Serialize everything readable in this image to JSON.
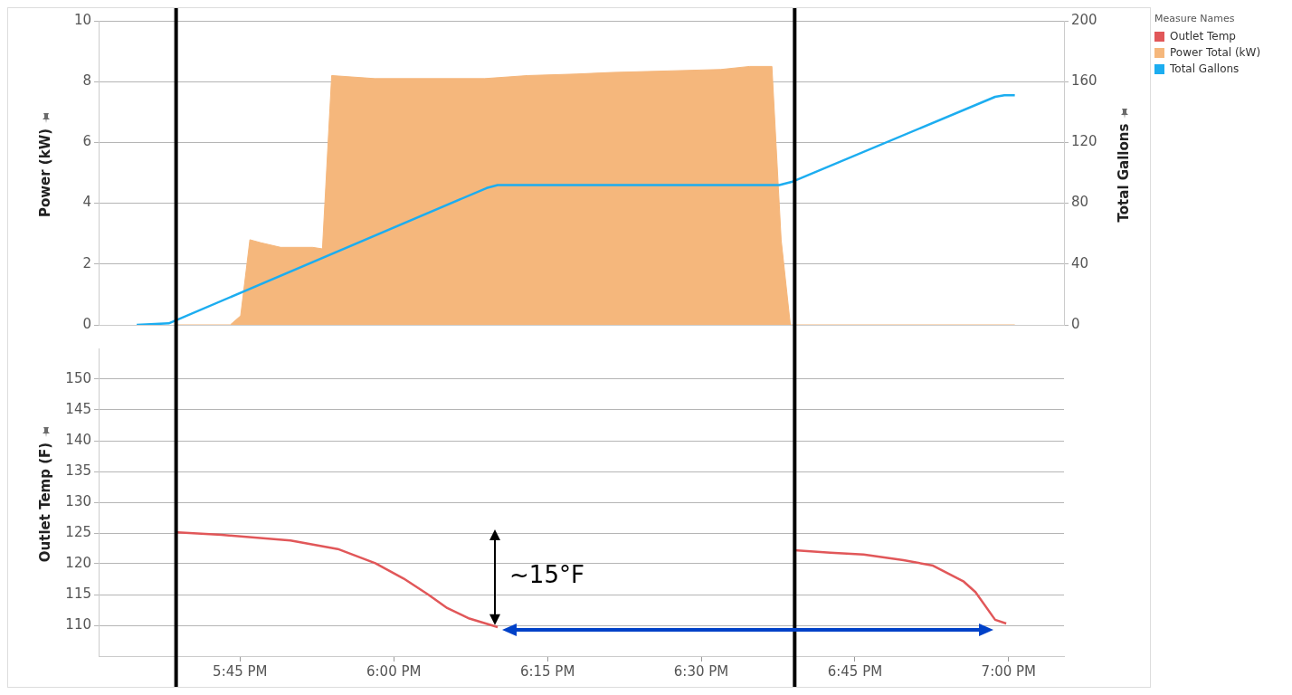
{
  "chart_data": [
    {
      "type": "area",
      "legend_title": "Measure Names",
      "legend": "right",
      "ylabel": "Power (kW)",
      "y2label": "Total Gallons",
      "xlim": [
        17.52,
        19.09
      ],
      "ylim": [
        0,
        10
      ],
      "yticks": [
        0,
        2,
        4,
        6,
        8,
        10
      ],
      "y2lim": [
        0,
        200
      ],
      "y2ticks": [
        0,
        40,
        80,
        120,
        160,
        200
      ],
      "grid": "y",
      "tick_labels": "y",
      "ref_lines": [
        {
          "axis": "x",
          "value": 17.646,
          "color": "#000000"
        },
        {
          "axis": "x",
          "value": 18.652,
          "color": "#000000"
        }
      ],
      "series": [
        {
          "name": "Power Total (kW)",
          "color": "#f5b77c",
          "x": [
            17.646,
            17.734,
            17.751,
            17.766,
            17.784,
            17.816,
            17.868,
            17.884,
            17.899,
            17.969,
            18.148,
            18.218,
            18.297,
            18.353,
            18.532,
            18.579,
            18.615,
            18.63,
            18.645,
            19.01
          ],
          "values": [
            0,
            0,
            0.3,
            2.8,
            2.7,
            2.55,
            2.55,
            2.5,
            8.2,
            8.1,
            8.1,
            8.2,
            8.25,
            8.3,
            8.4,
            8.5,
            8.5,
            2.8,
            0,
            0
          ]
        },
        {
          "name": "Total Gallons",
          "type": "line",
          "axis": "y2",
          "color": "#1cadf0",
          "x": [
            17.582,
            17.634,
            18.151,
            18.169,
            18.627,
            18.647,
            18.978,
            18.993,
            19.01
          ],
          "values": [
            0,
            1,
            90,
            92,
            92,
            94,
            150,
            151,
            151
          ]
        }
      ]
    },
    {
      "type": "line",
      "legend": "right",
      "ylabel": "Outlet Temp (F)",
      "xlim": [
        17.52,
        19.09
      ],
      "xticks": [
        {
          "value": 17.75,
          "label": "5:45 PM"
        },
        {
          "value": 18,
          "label": "6:00 PM"
        },
        {
          "value": 18.25,
          "label": "6:15 PM"
        },
        {
          "value": 18.5,
          "label": "6:30 PM"
        },
        {
          "value": 18.75,
          "label": "6:45 PM"
        },
        {
          "value": 19,
          "label": "7:00 PM"
        }
      ],
      "ylim": [
        105,
        155
      ],
      "yticks": [
        110,
        115,
        120,
        125,
        130,
        135,
        140,
        145,
        150
      ],
      "grid": "y",
      "annotations": [
        "~15°F"
      ],
      "ref_lines": [
        {
          "axis": "x",
          "value": 17.646,
          "color": "#000000"
        },
        {
          "axis": "x",
          "value": 18.652,
          "color": "#000000"
        }
      ],
      "series": [
        {
          "name": "Outlet Temp",
          "color": "#e15759",
          "x": [
            17.648,
            17.72,
            17.832,
            17.909,
            17.97,
            18.016,
            18.056,
            18.087,
            18.123,
            18.169,
            18.4,
            18.651,
            18.71,
            18.764,
            18.829,
            18.877,
            18.927,
            18.946,
            18.978,
            18.996
          ],
          "values": [
            125.1,
            124.7,
            123.8,
            122.4,
            120.1,
            117.6,
            115,
            112.8,
            111.1,
            109.7,
            null,
            122.2,
            121.8,
            121.5,
            120.6,
            119.7,
            117.1,
            115.4,
            110.9,
            110.3
          ]
        }
      ]
    }
  ]
}
